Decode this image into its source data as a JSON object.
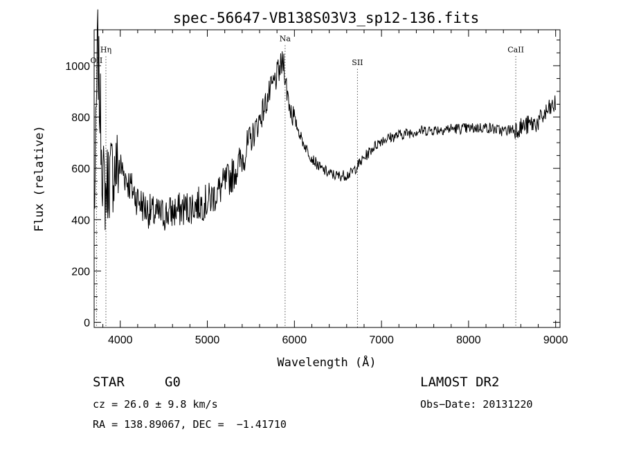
{
  "chart_data": {
    "type": "line",
    "title": "spec-56647-VB138S03V3_sp12-136.fits",
    "xlabel": "Wavelength (Å)",
    "ylabel": "Flux (relative)",
    "xlim": [
      3700,
      9050
    ],
    "ylim": [
      -20,
      1140
    ],
    "xticks": [
      4000,
      5000,
      6000,
      7000,
      8000,
      9000
    ],
    "yticks": [
      0,
      200,
      400,
      600,
      800,
      1000
    ],
    "grid": false,
    "series": [
      {
        "x": [
          3700,
          3720,
          3740,
          3760,
          3780,
          3800,
          3830,
          3860,
          3900,
          3950,
          4000,
          4100,
          4200,
          4300,
          4400,
          4500,
          4600,
          4700,
          4800,
          4900,
          5000,
          5100,
          5200,
          5300,
          5400,
          5500,
          5600,
          5700,
          5750,
          5800,
          5850,
          5880,
          5900,
          5950,
          6000,
          6100,
          6200,
          6300,
          6400,
          6500,
          6600,
          6650,
          6700,
          6800,
          6900,
          7000,
          7200,
          7400,
          7600,
          7800,
          8000,
          8200,
          8400,
          8600,
          8800,
          8900,
          9000
        ],
        "y": [
          430,
          700,
          1100,
          880,
          750,
          560,
          500,
          560,
          580,
          600,
          610,
          540,
          480,
          440,
          420,
          420,
          430,
          440,
          450,
          460,
          470,
          500,
          540,
          580,
          640,
          710,
          790,
          880,
          920,
          960,
          1000,
          1020,
          930,
          840,
          790,
          700,
          640,
          600,
          580,
          570,
          575,
          580,
          600,
          640,
          680,
          710,
          730,
          745,
          750,
          755,
          755,
          760,
          745,
          760,
          780,
          820,
          850
        ]
      }
    ],
    "line_markers": [
      {
        "label": "OII",
        "x": 3727,
        "label_flux": 1010
      },
      {
        "label": "Hη",
        "x": 3835,
        "label_flux": 1052
      },
      {
        "label": "Na",
        "x": 5893,
        "label_flux": 1095
      },
      {
        "label": "SII",
        "x": 6724,
        "label_flux": 1003
      },
      {
        "label": "CaII",
        "x": 8542,
        "label_flux": 1053
      }
    ]
  },
  "info": {
    "object_class": "STAR",
    "subclass": "G0",
    "redshift": "cz = 26.0 ± 9.8 km/s",
    "coords": "RA = 138.89067, DEC =  −1.41710",
    "survey": "LAMOST DR2",
    "obs_date": "Obs−Date: 20131220"
  }
}
